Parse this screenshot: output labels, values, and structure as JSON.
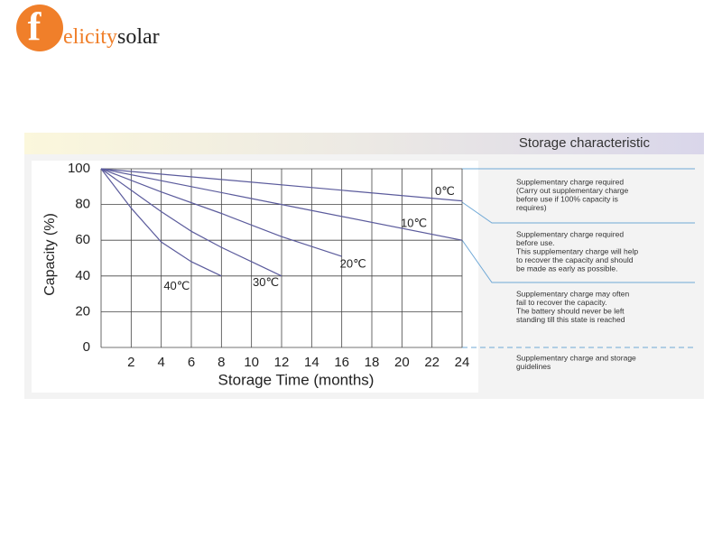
{
  "logo": {
    "mark": "f",
    "word1": "elicity",
    "word2": "solar"
  },
  "header": "Storage characteristic",
  "chart_data": {
    "type": "line",
    "ylabel": "Capacity (%)",
    "xlabel": "Storage Time (months)",
    "xlim": [
      0,
      24
    ],
    "xticks": [
      2,
      4,
      6,
      8,
      10,
      12,
      14,
      16,
      18,
      20,
      22,
      24
    ],
    "ylim": [
      0,
      100
    ],
    "yticks": [
      0,
      20,
      40,
      60,
      80,
      100
    ],
    "grid": true,
    "series": [
      {
        "name": "0℃",
        "color": "#5b5b9c",
        "x": [
          0,
          24
        ],
        "values": [
          100,
          82
        ]
      },
      {
        "name": "10℃",
        "color": "#5b5b9c",
        "x": [
          0,
          12,
          24
        ],
        "values": [
          100,
          80,
          60
        ]
      },
      {
        "name": "20℃",
        "color": "#5b5b9c",
        "x": [
          0,
          4,
          8,
          12,
          16
        ],
        "values": [
          100,
          87,
          75,
          62,
          51
        ]
      },
      {
        "name": "30℃",
        "color": "#5b5b9c",
        "x": [
          0,
          2,
          4,
          6,
          8,
          10,
          12
        ],
        "values": [
          100,
          88,
          76,
          65,
          56,
          48,
          40
        ]
      },
      {
        "name": "40℃",
        "color": "#5b5b9c",
        "x": [
          0,
          2,
          4,
          6,
          8
        ],
        "values": [
          100,
          78,
          59,
          48,
          40
        ]
      }
    ]
  },
  "notes": [
    [
      "Supplementary charge required",
      "(Carry out supplementary charge",
      "before use if 100% capacity is",
      "requires)"
    ],
    [
      "Supplementary charge required",
      "before use.",
      "This supplementary charge will help",
      "to recover the capacity and should",
      "be made  as early as possible."
    ],
    [
      "Supplementary charge may often",
      "fail to recover the capacity.",
      "The battery should never be left",
      "standing till this state is reached"
    ],
    [
      "Supplementary charge and storage",
      "guidelines"
    ]
  ]
}
